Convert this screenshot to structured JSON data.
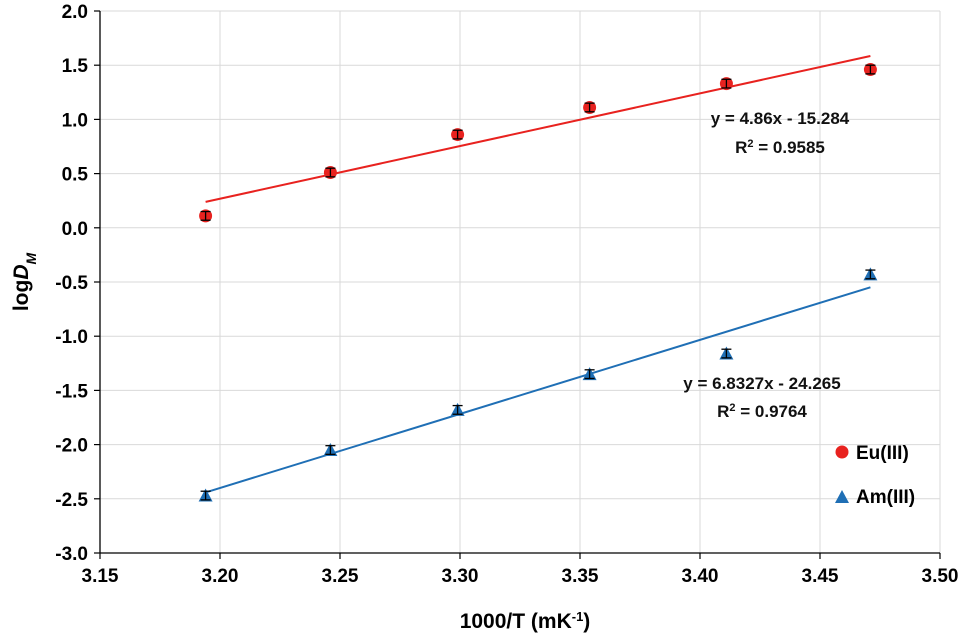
{
  "chart_data": {
    "type": "scatter",
    "title": "",
    "xlabel_main": "1000/T  (mK",
    "xlabel_sup": "-1",
    "xlabel_close": ")",
    "ylabel_prefix": "log",
    "ylabel_var": "D",
    "ylabel_sub": "M",
    "xlim": [
      3.15,
      3.5
    ],
    "ylim": [
      -3.0,
      2.0
    ],
    "xticks": [
      "3.15",
      "3.20",
      "3.25",
      "3.30",
      "3.35",
      "3.40",
      "3.45",
      "3.50"
    ],
    "yticks": [
      "2.0",
      "1.5",
      "1.0",
      "0.5",
      "0.0",
      "-0.5",
      "-1.0",
      "-1.5",
      "-2.0",
      "-2.5",
      "-3.0"
    ],
    "grid": true,
    "legend_position": "bottom-right",
    "series": [
      {
        "name": "Eu(III)",
        "marker": "circle",
        "color": "#e8221f",
        "x": [
          3.194,
          3.246,
          3.299,
          3.354,
          3.411,
          3.471
        ],
        "y": [
          0.11,
          0.51,
          0.86,
          1.11,
          1.33,
          1.46
        ],
        "error": 0.04,
        "fit": {
          "slope": 4.86,
          "intercept": -15.284
        },
        "equation": "y = 4.86x - 15.284",
        "r2_prefix": "R",
        "r2_sup": "2",
        "r2_value": " = 0.9585"
      },
      {
        "name": "Am(III)",
        "marker": "triangle",
        "color": "#1f6fb5",
        "x": [
          3.194,
          3.246,
          3.299,
          3.354,
          3.411,
          3.471
        ],
        "y": [
          -2.47,
          -2.05,
          -1.68,
          -1.35,
          -1.16,
          -0.43
        ],
        "error": 0.04,
        "fit": {
          "slope": 6.8327,
          "intercept": -24.265
        },
        "equation": "y = 6.8327x - 24.265",
        "r2_prefix": "R",
        "r2_sup": "2",
        "r2_value": " = 0.9764"
      }
    ]
  }
}
